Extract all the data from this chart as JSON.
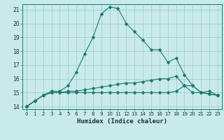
{
  "title": "",
  "xlabel": "Humidex (Indice chaleur)",
  "ylabel": "",
  "background_color": "#c8eaea",
  "grid_color": "#a0c8c8",
  "line_color": "#1a7a6a",
  "ylim": [
    13.8,
    21.4
  ],
  "xlim": [
    -0.5,
    23.5
  ],
  "yticks": [
    14,
    15,
    16,
    17,
    18,
    19,
    20,
    21
  ],
  "xticks": [
    0,
    1,
    2,
    3,
    4,
    5,
    6,
    7,
    8,
    9,
    10,
    11,
    12,
    13,
    14,
    15,
    16,
    17,
    18,
    19,
    20,
    21,
    22,
    23
  ],
  "series1_x": [
    0,
    1,
    2,
    3,
    4,
    5,
    6,
    7,
    8,
    9,
    10,
    11,
    12,
    13,
    14,
    15,
    16,
    17,
    18,
    19,
    20,
    21,
    22,
    23
  ],
  "series1_y": [
    14.0,
    14.4,
    14.8,
    15.1,
    15.1,
    15.5,
    16.5,
    17.8,
    19.0,
    20.7,
    21.2,
    21.1,
    20.0,
    19.4,
    18.8,
    18.1,
    18.1,
    17.2,
    17.5,
    16.3,
    15.5,
    15.0,
    15.1,
    14.8
  ],
  "series2_x": [
    0,
    1,
    2,
    3,
    4,
    5,
    6,
    7,
    8,
    9,
    10,
    11,
    12,
    13,
    14,
    15,
    16,
    17,
    18,
    19,
    20,
    21,
    22,
    23
  ],
  "series2_y": [
    14.0,
    14.4,
    14.8,
    15.0,
    15.0,
    15.1,
    15.1,
    15.2,
    15.3,
    15.4,
    15.5,
    15.6,
    15.7,
    15.7,
    15.8,
    15.9,
    16.0,
    16.0,
    16.2,
    15.5,
    15.0,
    15.0,
    14.9,
    14.8
  ],
  "series3_x": [
    0,
    1,
    2,
    3,
    4,
    5,
    6,
    7,
    8,
    9,
    10,
    11,
    12,
    13,
    14,
    15,
    16,
    17,
    18,
    19,
    20,
    21,
    22,
    23
  ],
  "series3_y": [
    14.0,
    14.4,
    14.8,
    15.0,
    15.0,
    15.0,
    15.0,
    15.0,
    15.0,
    15.0,
    15.0,
    15.0,
    15.0,
    15.0,
    15.0,
    15.0,
    15.0,
    15.0,
    15.1,
    15.5,
    15.5,
    15.0,
    14.9,
    14.8
  ],
  "xlabel_fontsize": 6.5,
  "xlabel_color": "#1a3030",
  "tick_fontsize": 5.5,
  "xtick_fontsize": 5.0
}
